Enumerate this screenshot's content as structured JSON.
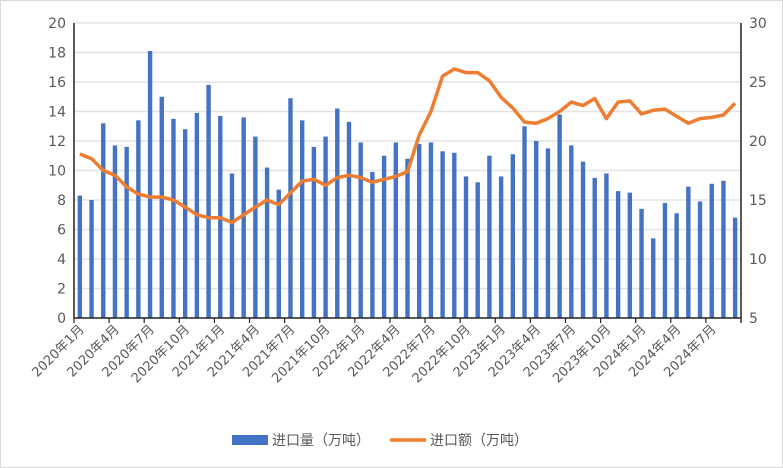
{
  "chart_data": {
    "type": "bar+line",
    "title": "",
    "categories": [
      "2020年1月",
      "2020年2月",
      "2020年3月",
      "2020年4月",
      "2020年5月",
      "2020年6月",
      "2020年7月",
      "2020年8月",
      "2020年9月",
      "2020年10月",
      "2020年11月",
      "2020年12月",
      "2021年1月",
      "2021年2月",
      "2021年3月",
      "2021年4月",
      "2021年5月",
      "2021年6月",
      "2021年7月",
      "2021年8月",
      "2021年9月",
      "2021年10月",
      "2021年11月",
      "2021年12月",
      "2022年1月",
      "2022年2月",
      "2022年3月",
      "2022年4月",
      "2022年5月",
      "2022年6月",
      "2022年7月",
      "2022年8月",
      "2022年9月",
      "2022年10月",
      "2022年11月",
      "2022年12月",
      "2023年1月",
      "2023年2月",
      "2023年3月",
      "2023年4月",
      "2023年5月",
      "2023年6月",
      "2023年7月",
      "2023年8月",
      "2023年9月",
      "2023年10月",
      "2023年11月",
      "2023年12月",
      "2024年1月",
      "2024年2月",
      "2024年3月",
      "2024年4月",
      "2024年5月",
      "2024年6月",
      "2024年7月",
      "2024年8月",
      "2024年9月"
    ],
    "tick_labels": [
      "2020年1月",
      "2020年4月",
      "2020年7月",
      "2020年10月",
      "2021年1月",
      "2021年4月",
      "2021年7月",
      "2021年10月",
      "2022年1月",
      "2022年4月",
      "2022年7月",
      "2022年10月",
      "2023年1月",
      "2023年4月",
      "2023年7月",
      "2023年10月",
      "2024年1月",
      "2024年4月",
      "2024年7月"
    ],
    "series": [
      {
        "name": "进口量（万吨）",
        "type": "bar",
        "axis": "left",
        "color": "#4472C4",
        "values": [
          8.3,
          8.0,
          13.2,
          11.7,
          11.6,
          13.4,
          18.1,
          15.0,
          13.5,
          12.8,
          13.9,
          15.8,
          13.7,
          9.8,
          13.6,
          12.3,
          10.2,
          8.7,
          14.9,
          13.4,
          11.6,
          12.3,
          14.2,
          13.3,
          11.9,
          9.9,
          11.0,
          11.9,
          10.8,
          11.8,
          11.9,
          11.3,
          11.2,
          9.6,
          9.2,
          11.0,
          9.6,
          11.1,
          13.0,
          12.0,
          11.5,
          13.8,
          11.7,
          10.6,
          9.5,
          9.8,
          8.6,
          8.5,
          7.4,
          5.4,
          7.8,
          7.1,
          8.9,
          7.9,
          9.1,
          9.3,
          6.8
        ]
      },
      {
        "name": "进口额（万吨）",
        "type": "line",
        "axis": "right",
        "color": "#ED7D31",
        "values": [
          18.9,
          18.5,
          17.5,
          17.1,
          16.1,
          15.5,
          15.25,
          15.25,
          15.0,
          14.4,
          13.75,
          13.5,
          13.5,
          13.1,
          13.75,
          14.4,
          15.0,
          14.6,
          15.6,
          16.6,
          16.75,
          16.25,
          16.9,
          17.1,
          16.9,
          16.5,
          16.75,
          17.0,
          17.4,
          20.5,
          22.5,
          25.5,
          26.1,
          25.8,
          25.8,
          25.1,
          23.7,
          22.8,
          21.6,
          21.5,
          21.9,
          22.5,
          23.3,
          23.0,
          23.6,
          21.9,
          23.3,
          23.4,
          22.3,
          22.6,
          22.7,
          22.1,
          21.5,
          21.9,
          22.0,
          22.2,
          23.2
        ]
      }
    ],
    "y_left": {
      "min": 0,
      "max": 20,
      "ticks": [
        0,
        2,
        4,
        6,
        8,
        10,
        12,
        14,
        16,
        18,
        20
      ]
    },
    "y_right": {
      "min": 5,
      "max": 30,
      "ticks": [
        5,
        10,
        15,
        20,
        25,
        30
      ]
    },
    "grid": true,
    "legend": "bottom"
  }
}
